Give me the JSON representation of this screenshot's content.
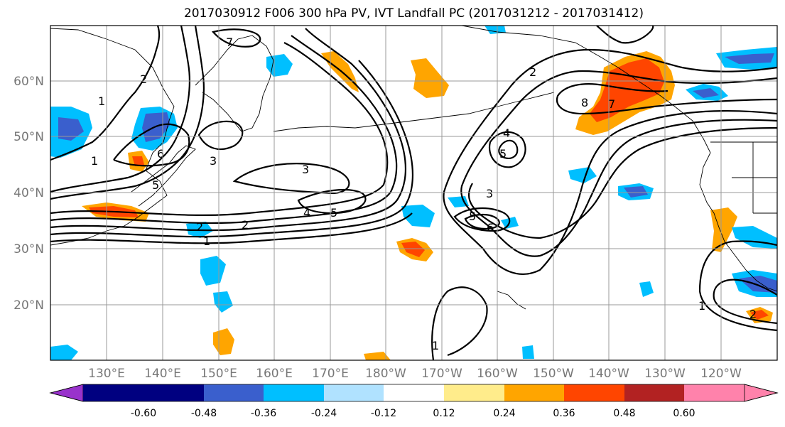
{
  "title": "2017030912 F006 300 hPa PV, IVT Landfall PC (2017031212 - 2017031412)",
  "lat_labels": [
    "60°N",
    "50°N",
    "40°N",
    "30°N",
    "20°N"
  ],
  "lon_labels": [
    "130°E",
    "140°E",
    "150°E",
    "160°E",
    "170°E",
    "180°W",
    "170°W",
    "160°W",
    "150°W",
    "140°W",
    "130°W",
    "120°W"
  ],
  "colorbar": {
    "colors": [
      "#9932cc",
      "#000080",
      "#3a5fcd",
      "#00bfff",
      "#b0e2ff",
      "#ffffff",
      "#ffec8b",
      "#ffa500",
      "#ff4500",
      "#b22222",
      "#ff82ab"
    ],
    "tick_labels": [
      "-0.60",
      "-0.48",
      "-0.36",
      "-0.24",
      "-0.12",
      "0.12",
      "0.24",
      "0.36",
      "0.48",
      "0.60"
    ]
  },
  "contour_labels": [
    "1",
    "2",
    "3",
    "4",
    "5",
    "6",
    "7",
    "8"
  ]
}
